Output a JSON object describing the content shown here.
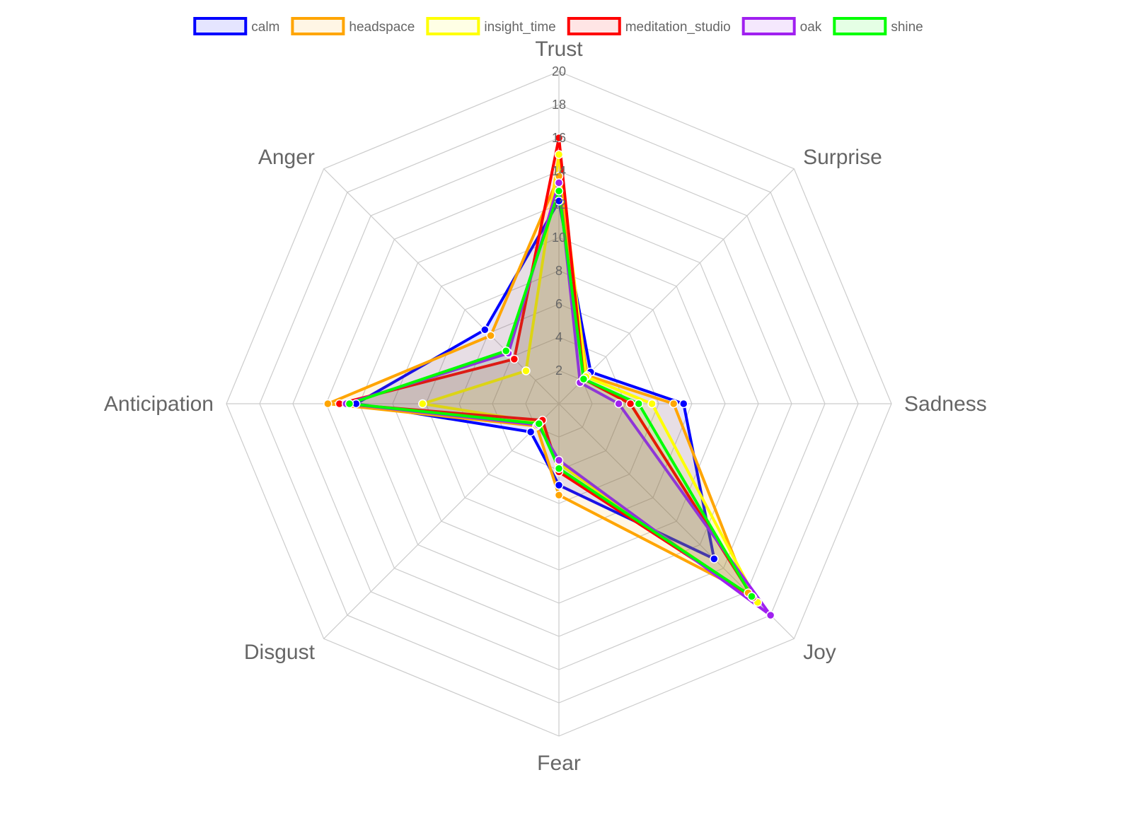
{
  "chart_data": {
    "type": "radar",
    "axes": [
      "Trust",
      "Surprise",
      "Sadness",
      "Joy",
      "Fear",
      "Disgust",
      "Anticipation",
      "Anger"
    ],
    "r_range": [
      0,
      20
    ],
    "ticks": [
      2,
      4,
      6,
      8,
      10,
      12,
      14,
      16,
      18,
      20
    ],
    "tick_labels": [
      "2",
      "4",
      "6",
      "8",
      "10",
      "12",
      "14",
      "16",
      "18",
      "20"
    ],
    "grid": true,
    "legend_position": "top",
    "series": [
      {
        "name": "calm",
        "color": "#0000ff",
        "fill": "rgba(0,0,255,0.10)",
        "values": [
          12.2,
          2.7,
          7.5,
          13.2,
          4.9,
          2.4,
          12.2,
          6.3
        ]
      },
      {
        "name": "headspace",
        "color": "#ffa500",
        "fill": "rgba(255,165,0,0.10)",
        "values": [
          13.7,
          2.4,
          6.9,
          16.1,
          5.5,
          1.9,
          13.9,
          5.8
        ]
      },
      {
        "name": "insight_time",
        "color": "#ffff00",
        "fill": "rgba(255,255,0,0.10)",
        "values": [
          15.0,
          2.3,
          5.6,
          16.9,
          3.6,
          1.6,
          8.2,
          2.8
        ]
      },
      {
        "name": "meditation_studio",
        "color": "#ff0000",
        "fill": "rgba(255,0,0,0.10)",
        "values": [
          16.0,
          2.1,
          4.3,
          16.5,
          4.1,
          1.4,
          13.2,
          3.8
        ]
      },
      {
        "name": "oak",
        "color": "#a020f0",
        "fill": "rgba(160,32,240,0.10)",
        "values": [
          13.3,
          1.8,
          3.6,
          18.0,
          3.4,
          1.8,
          12.8,
          4.3
        ]
      },
      {
        "name": "shine",
        "color": "#00ff00",
        "fill": "rgba(0,255,0,0.10)",
        "values": [
          12.8,
          2.1,
          4.8,
          16.4,
          3.9,
          1.7,
          12.6,
          4.5
        ]
      }
    ]
  }
}
